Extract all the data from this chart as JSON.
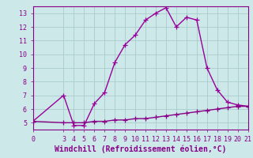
{
  "line1_x": [
    0,
    3,
    4,
    5,
    6,
    7,
    8,
    9,
    10,
    11,
    12,
    13,
    14,
    15,
    16,
    17,
    18,
    19,
    20,
    21
  ],
  "line1_y": [
    5.1,
    7.0,
    4.8,
    4.8,
    6.4,
    7.2,
    9.4,
    10.7,
    11.4,
    12.5,
    13.0,
    13.4,
    12.0,
    12.7,
    12.5,
    9.0,
    7.4,
    6.5,
    6.3,
    6.2
  ],
  "line2_x": [
    0,
    3,
    4,
    5,
    6,
    7,
    8,
    9,
    10,
    11,
    12,
    13,
    14,
    15,
    16,
    17,
    18,
    19,
    20,
    21
  ],
  "line2_y": [
    5.1,
    5.0,
    5.0,
    5.0,
    5.1,
    5.1,
    5.2,
    5.2,
    5.3,
    5.3,
    5.4,
    5.5,
    5.6,
    5.7,
    5.8,
    5.9,
    6.0,
    6.1,
    6.2,
    6.2
  ],
  "line_color": "#990099",
  "bg_color": "#cce8e8",
  "grid_color": "#aacccc",
  "xlabel": "Windchill (Refroidissement éolien,°C)",
  "xlim": [
    0,
    21
  ],
  "ylim": [
    4.5,
    13.5
  ],
  "xticks": [
    0,
    3,
    4,
    5,
    6,
    7,
    8,
    9,
    10,
    11,
    12,
    13,
    14,
    15,
    16,
    17,
    18,
    19,
    20,
    21
  ],
  "yticks": [
    5,
    6,
    7,
    8,
    9,
    10,
    11,
    12,
    13
  ],
  "marker": "+",
  "markersize": 4,
  "linewidth": 1.0,
  "xlabel_fontsize": 7,
  "tick_fontsize": 6,
  "tick_color": "#880088",
  "line_color2": "#880088",
  "xlabel_color": "#880088",
  "xlabel_fontweight": "bold"
}
